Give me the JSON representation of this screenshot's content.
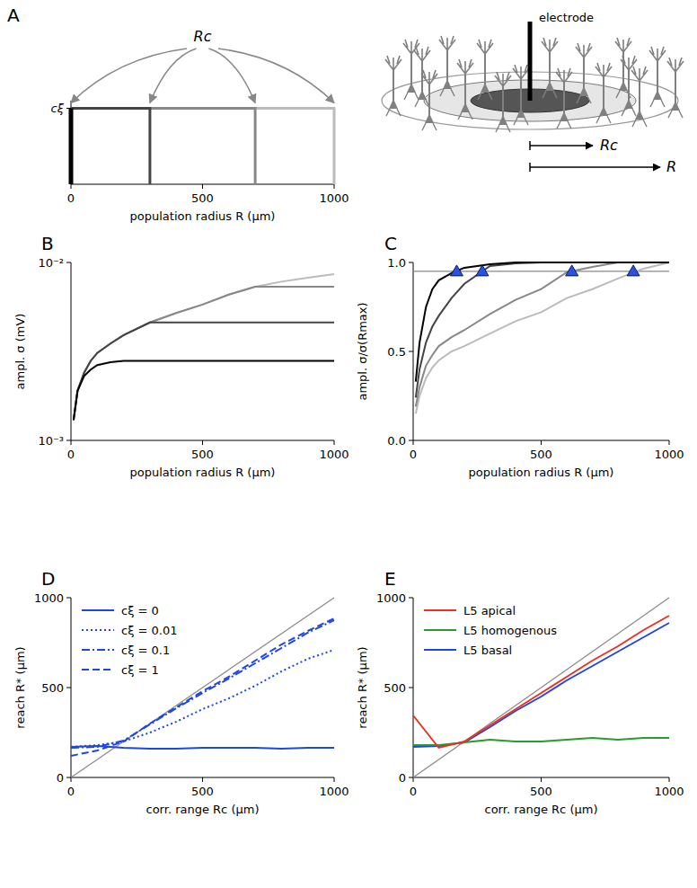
{
  "chart_data": [
    {
      "panel": "A",
      "type": "line",
      "xlabel": "population radius R (μm)",
      "annotation": "Rc",
      "xlim": [
        0,
        1000
      ],
      "ylim": [
        0,
        1.1
      ],
      "xticks": [
        0,
        500,
        1000
      ],
      "yticks": [
        {
          "value": 1,
          "label": "cξ"
        }
      ],
      "series": [
        {
          "color": "#000000",
          "x": [
            0,
            0,
            0
          ],
          "values": [
            1,
            1,
            0
          ]
        },
        {
          "color": "#444444",
          "x": [
            0,
            300,
            300
          ],
          "values": [
            1,
            1,
            0
          ]
        },
        {
          "color": "#888888",
          "x": [
            0,
            700,
            700
          ],
          "values": [
            1,
            1,
            0
          ]
        },
        {
          "color": "#bbbbbb",
          "x": [
            0,
            1000,
            1000
          ],
          "values": [
            1,
            1,
            0
          ]
        }
      ]
    },
    {
      "panel": "B",
      "type": "line",
      "log": "y",
      "xlabel": "population radius R (μm)",
      "ylabel": "ampl. σ (mV)",
      "xlim": [
        0,
        1000
      ],
      "ylim": [
        0.001,
        0.01
      ],
      "xticks": [
        0,
        500,
        1000
      ],
      "yticks": [
        {
          "value": 0.001,
          "label": "10⁻³"
        },
        {
          "value": 0.01,
          "label": "10⁻²"
        }
      ],
      "series": [
        {
          "color": "#000000",
          "x": [
            10,
            25,
            50,
            75,
            100,
            150,
            200,
            300,
            400,
            500,
            600,
            700,
            800,
            900,
            1000
          ],
          "values": [
            0.0013,
            0.0019,
            0.0023,
            0.0025,
            0.00265,
            0.00275,
            0.0028,
            0.0028,
            0.0028,
            0.0028,
            0.0028,
            0.0028,
            0.0028,
            0.0028,
            0.0028
          ]
        },
        {
          "color": "#444444",
          "x": [
            10,
            25,
            50,
            75,
            100,
            150,
            200,
            300,
            400,
            500,
            600,
            700,
            800,
            900,
            1000
          ],
          "values": [
            0.0013,
            0.0019,
            0.0024,
            0.0028,
            0.0031,
            0.0035,
            0.0039,
            0.0046,
            0.0046,
            0.0046,
            0.0046,
            0.0046,
            0.0046,
            0.0046,
            0.0046
          ]
        },
        {
          "color": "#888888",
          "x": [
            10,
            25,
            50,
            75,
            100,
            150,
            200,
            300,
            400,
            500,
            600,
            700,
            800,
            900,
            1000
          ],
          "values": [
            0.0013,
            0.0019,
            0.0024,
            0.0028,
            0.0031,
            0.0035,
            0.0039,
            0.0046,
            0.0052,
            0.0058,
            0.0066,
            0.0073,
            0.0073,
            0.0073,
            0.0073
          ]
        },
        {
          "color": "#bbbbbb",
          "x": [
            10,
            25,
            50,
            75,
            100,
            150,
            200,
            300,
            400,
            500,
            600,
            700,
            800,
            900,
            1000
          ],
          "values": [
            0.0013,
            0.0019,
            0.0024,
            0.0028,
            0.0031,
            0.0035,
            0.0039,
            0.0046,
            0.0052,
            0.0058,
            0.0066,
            0.0073,
            0.0078,
            0.0082,
            0.0086
          ]
        }
      ]
    },
    {
      "panel": "C",
      "type": "line",
      "xlabel": "population radius R (μm)",
      "ylabel": "ampl. σ/σ(Rmax)",
      "xlim": [
        0,
        1000
      ],
      "ylim": [
        0,
        1
      ],
      "xticks": [
        0,
        500,
        1000
      ],
      "yticks": [
        {
          "value": 0,
          "label": "0.0"
        },
        {
          "value": 0.5,
          "label": "0.5"
        },
        {
          "value": 1,
          "label": "1.0"
        }
      ],
      "series": [
        {
          "color": "#000000",
          "x": [
            10,
            25,
            50,
            75,
            100,
            150,
            200,
            300,
            400,
            500,
            600,
            700,
            800,
            900,
            1000
          ],
          "values": [
            0.33,
            0.55,
            0.75,
            0.85,
            0.9,
            0.94,
            0.97,
            0.99,
            1,
            1,
            1,
            1,
            1,
            1,
            1
          ]
        },
        {
          "color": "#444444",
          "x": [
            10,
            25,
            50,
            75,
            100,
            150,
            200,
            300,
            400,
            500,
            600,
            700,
            800,
            900,
            1000
          ],
          "values": [
            0.24,
            0.4,
            0.55,
            0.64,
            0.7,
            0.8,
            0.88,
            0.98,
            0.995,
            1,
            1,
            1,
            1,
            1,
            1
          ]
        },
        {
          "color": "#888888",
          "x": [
            10,
            25,
            50,
            75,
            100,
            150,
            200,
            300,
            400,
            500,
            600,
            700,
            800,
            900,
            1000
          ],
          "values": [
            0.19,
            0.3,
            0.42,
            0.48,
            0.53,
            0.58,
            0.62,
            0.71,
            0.79,
            0.85,
            0.945,
            0.975,
            1,
            1,
            1
          ]
        },
        {
          "color": "#bbbbbb",
          "x": [
            10,
            25,
            50,
            75,
            100,
            150,
            200,
            300,
            400,
            500,
            600,
            700,
            800,
            900,
            1000
          ],
          "values": [
            0.15,
            0.25,
            0.35,
            0.41,
            0.45,
            0.5,
            0.53,
            0.6,
            0.67,
            0.72,
            0.8,
            0.85,
            0.91,
            0.965,
            1
          ]
        },
        {
          "color": "#888888",
          "x": [
            0,
            1000
          ],
          "values": [
            0.95,
            0.95
          ]
        },
        {
          "type": "scatter",
          "marker": "triangle",
          "color": "#2a52e0",
          "x": [
            170,
            270,
            620,
            860
          ],
          "values": [
            0.95,
            0.95,
            0.95,
            0.95
          ]
        }
      ]
    },
    {
      "panel": "D",
      "type": "line",
      "xlabel": "corr. range Rc (μm)",
      "ylabel": "reach R* (μm)",
      "legend": "upper left",
      "xlim": [
        0,
        1000
      ],
      "ylim": [
        0,
        1000
      ],
      "xticks": [
        0,
        500,
        1000
      ],
      "yticks": [
        0,
        500,
        1000
      ],
      "series": [
        {
          "name": "cξ = 0",
          "color": "#1f47e0",
          "line_style": "solid",
          "x": [
            0,
            100,
            200,
            300,
            400,
            500,
            600,
            700,
            800,
            900,
            1000
          ],
          "values": [
            170,
            175,
            165,
            160,
            160,
            165,
            165,
            165,
            160,
            165,
            165
          ]
        },
        {
          "name": "cξ = 0.01",
          "color": "#1f47e0",
          "line_style": "dotted",
          "x": [
            0,
            100,
            200,
            300,
            400,
            500,
            600,
            700,
            800,
            900,
            1000
          ],
          "values": [
            170,
            180,
            200,
            250,
            310,
            380,
            440,
            510,
            590,
            660,
            710
          ]
        },
        {
          "name": "cξ = 0.1",
          "color": "#1f47e0",
          "line_style": "dashdot",
          "x": [
            0,
            100,
            200,
            300,
            400,
            500,
            600,
            700,
            800,
            900,
            1000
          ],
          "values": [
            165,
            170,
            205,
            295,
            385,
            470,
            550,
            635,
            720,
            805,
            875
          ]
        },
        {
          "name": "cξ = 1",
          "color": "#1f47e0",
          "line_style": "dashed",
          "x": [
            0,
            100,
            200,
            300,
            400,
            500,
            600,
            700,
            800,
            900,
            1000
          ],
          "values": [
            120,
            150,
            200,
            300,
            390,
            480,
            560,
            650,
            740,
            815,
            885
          ]
        },
        {
          "color": "#888888",
          "x": [
            0,
            1000
          ],
          "values": [
            0,
            1000
          ]
        }
      ]
    },
    {
      "panel": "E",
      "type": "line",
      "xlabel": "corr. range Rc (μm)",
      "ylabel": "reach R* (μm)",
      "legend": "upper left",
      "xlim": [
        0,
        1000
      ],
      "ylim": [
        0,
        1000
      ],
      "xticks": [
        0,
        500,
        1000
      ],
      "yticks": [
        0,
        500,
        1000
      ],
      "series": [
        {
          "name": "L5 apical",
          "color": "#f0301e",
          "x": [
            0,
            100,
            200,
            300,
            400,
            500,
            600,
            700,
            800,
            900,
            1000
          ],
          "values": [
            345,
            165,
            200,
            290,
            380,
            470,
            560,
            650,
            730,
            820,
            900
          ]
        },
        {
          "name": "L5 homogenous",
          "color": "#2a9a2a",
          "x": [
            0,
            100,
            200,
            300,
            400,
            500,
            600,
            700,
            800,
            900,
            1000
          ],
          "values": [
            180,
            180,
            195,
            210,
            200,
            200,
            210,
            220,
            210,
            220,
            220
          ]
        },
        {
          "name": "L5 basal",
          "color": "#1f47e0",
          "x": [
            0,
            100,
            200,
            300,
            400,
            500,
            600,
            700,
            800,
            900,
            1000
          ],
          "values": [
            170,
            175,
            195,
            280,
            370,
            450,
            540,
            620,
            700,
            780,
            860
          ]
        },
        {
          "color": "#888888",
          "x": [
            0,
            1000
          ],
          "values": [
            0,
            1000
          ]
        }
      ]
    }
  ],
  "diagram": {
    "electrode_label": "electrode",
    "correlation_radius_label": "Rc",
    "radius_label": "R"
  }
}
